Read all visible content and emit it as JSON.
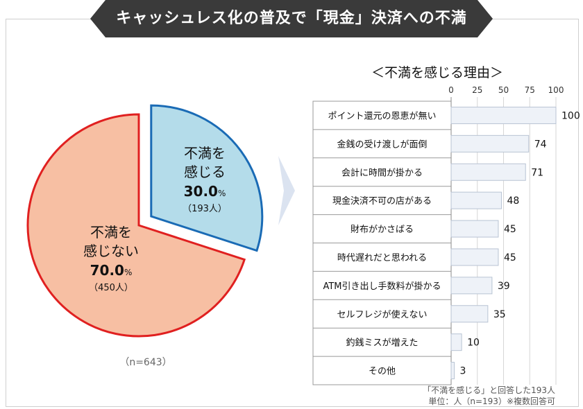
{
  "header": {
    "title": "キャッシュレス化の普及で「現金」決済への不満"
  },
  "pie": {
    "n_label": "（n=643）",
    "slices": [
      {
        "label_line1": "不満を",
        "label_line2": "感じる",
        "percent": "30.0",
        "unit": "%",
        "count": "（193人）",
        "value": 30.0
      },
      {
        "label_line1": "不満を",
        "label_line2": "感じない",
        "percent": "70.0",
        "unit": "%",
        "count": "（450人）",
        "value": 70.0
      }
    ]
  },
  "colors": {
    "banner": "#3a3a3a",
    "dissatisfied_fill": "#b4dcea",
    "dissatisfied_stroke": "#1a6bb5",
    "satisfied_fill": "#f7bfa3",
    "satisfied_stroke": "#e02020",
    "bar_fill": "#eef2f8",
    "bar_stroke": "#b8c3d3",
    "arrow": "#dbe3f0"
  },
  "chart_data": {
    "type": "bar",
    "title": "＜不満を感じる理由＞",
    "categories": [
      "ポイント還元の恩恵が無い",
      "金銭の受け渡しが面倒",
      "会計に時間が掛かる",
      "現金決済不可の店がある",
      "財布がかさばる",
      "時代遅れだと思われる",
      "ATM引き出し手数料が掛かる",
      "セルフレジが使えない",
      "釣銭ミスが増えた",
      "その他"
    ],
    "values": [
      100,
      74,
      71,
      48,
      45,
      45,
      39,
      35,
      10,
      3
    ],
    "xlim": [
      0,
      100
    ],
    "ticks": [
      "0",
      "25",
      "50",
      "75",
      "100"
    ],
    "grid": true
  },
  "footnotes": {
    "line1": "「不満を感じる」と回答した193人",
    "line2": "単位：人（n=193）※複数回答可"
  }
}
